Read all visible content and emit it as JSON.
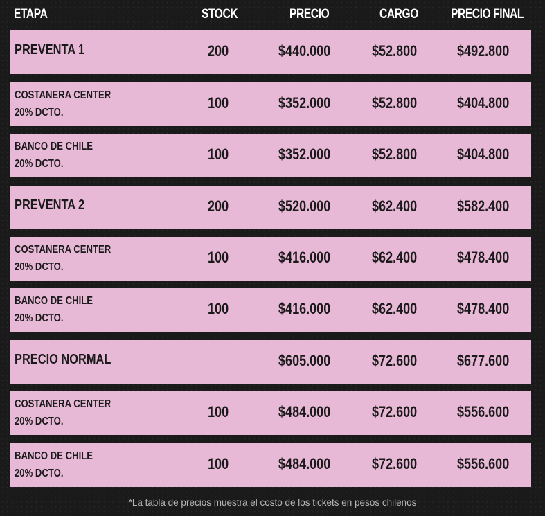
{
  "table": {
    "headers": [
      "ETAPA",
      "STOCK",
      "PRECIO",
      "CARGO",
      "PRECIO FINAL"
    ],
    "rows": [
      {
        "etapa": "PREVENTA 1",
        "etapa_line2": "",
        "stock": "200",
        "precio": "$440.000",
        "cargo": "$52.800",
        "precio_final": "$492.800"
      },
      {
        "etapa": "COSTANERA CENTER",
        "etapa_line2": "20% DCTO.",
        "stock": "100",
        "precio": "$352.000",
        "cargo": "$52.800",
        "precio_final": "$404.800"
      },
      {
        "etapa": "BANCO DE CHILE",
        "etapa_line2": "20% DCTO.",
        "stock": "100",
        "precio": "$352.000",
        "cargo": "$52.800",
        "precio_final": "$404.800"
      },
      {
        "etapa": "PREVENTA 2",
        "etapa_line2": "",
        "stock": "200",
        "precio": "$520.000",
        "cargo": "$62.400",
        "precio_final": "$582.400"
      },
      {
        "etapa": "COSTANERA CENTER",
        "etapa_line2": "20% DCTO.",
        "stock": "100",
        "precio": "$416.000",
        "cargo": "$62.400",
        "precio_final": "$478.400"
      },
      {
        "etapa": "BANCO DE CHILE",
        "etapa_line2": "20% DCTO.",
        "stock": "100",
        "precio": "$416.000",
        "cargo": "$62.400",
        "precio_final": "$478.400"
      },
      {
        "etapa": "PRECIO NORMAL",
        "etapa_line2": "",
        "stock": "",
        "precio": "$605.000",
        "cargo": "$72.600",
        "precio_final": "$677.600"
      },
      {
        "etapa": "COSTANERA CENTER",
        "etapa_line2": "20% DCTO.",
        "stock": "100",
        "precio": "$484.000",
        "cargo": "$72.600",
        "precio_final": "$556.600"
      },
      {
        "etapa": "BANCO DE CHILE",
        "etapa_line2": "20% DCTO.",
        "stock": "100",
        "precio": "$484.000",
        "cargo": "$72.600",
        "precio_final": "$556.600"
      }
    ]
  },
  "footnote": "*La tabla de precios muestra  el costo de los tickets en pesos chilenos",
  "colors": {
    "background": "#1b1a1b",
    "row": "#e8b9d6",
    "text_dark": "#1b1a1b",
    "header_text": "#ffffff"
  }
}
